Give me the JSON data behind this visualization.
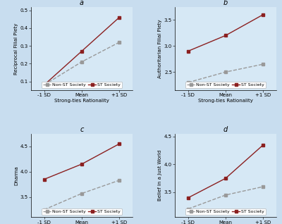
{
  "panels": [
    {
      "label": "a",
      "ylabel": "Reciprocal Filial Piety",
      "non_st": [
        0.08,
        0.21,
        0.32
      ],
      "st": [
        0.08,
        0.27,
        0.46
      ],
      "ylim": [
        0.05,
        0.52
      ],
      "yticks": [
        0.1,
        0.2,
        0.3,
        0.4,
        0.5
      ]
    },
    {
      "label": "b",
      "ylabel": "Authoritarian Filial Piety",
      "non_st": [
        2.3,
        2.5,
        2.65
      ],
      "st": [
        2.9,
        3.2,
        3.6
      ],
      "ylim": [
        2.15,
        3.75
      ],
      "yticks": [
        2.5,
        3.0,
        3.5
      ]
    },
    {
      "label": "c",
      "ylabel": "Dharma",
      "non_st": [
        3.25,
        3.57,
        3.83
      ],
      "st": [
        3.85,
        4.15,
        4.55
      ],
      "ylim": [
        3.1,
        4.75
      ],
      "yticks": [
        3.5,
        4.0,
        4.5
      ]
    },
    {
      "label": "d",
      "ylabel": "Belief in a Just World",
      "non_st": [
        3.2,
        3.45,
        3.6
      ],
      "st": [
        3.4,
        3.75,
        4.35
      ],
      "ylim": [
        3.05,
        4.55
      ],
      "yticks": [
        3.5,
        4.0,
        4.5
      ]
    }
  ],
  "xlabel": "Strong-ties Rationality",
  "legend_labels": [
    "Non-ST Society",
    "ST Society"
  ],
  "non_st_color": "#999999",
  "st_color": "#8b2020",
  "bg_color": "#d6e8f5",
  "fig_color": "#c8ddef",
  "marker_non_st": "s",
  "marker_st": "s",
  "marker_size": 3.5,
  "line_width": 1.0,
  "xtick_labels": [
    "-1 SD",
    "Mean",
    "+1 SD"
  ],
  "title_fontsize": 7,
  "axis_fontsize": 5,
  "tick_fontsize": 5,
  "legend_fontsize": 4.5
}
